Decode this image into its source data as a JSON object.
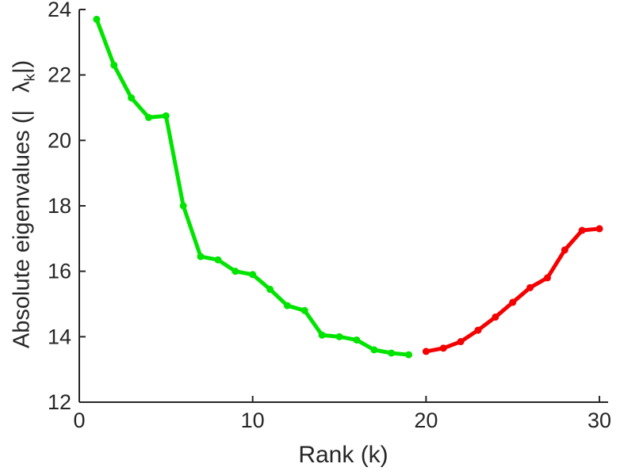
{
  "figure": {
    "background": "#ffffff",
    "axis_color": "#262626"
  },
  "axes": {
    "xlabel": "Rank (k)",
    "ylabel_prefix": "Absolute eigenvalues (|",
    "ylabel_lambda": "λ",
    "ylabel_sub": "k",
    "ylabel_suffix": "|)"
  },
  "chart_data": {
    "type": "line",
    "title": "",
    "xlabel": "Rank (k)",
    "ylabel": "Absolute eigenvalues (|λk|)",
    "xlim": [
      0,
      30.5
    ],
    "ylim": [
      12,
      24
    ],
    "x_ticks": [
      0,
      10,
      20,
      30
    ],
    "y_ticks": [
      12,
      14,
      16,
      18,
      20,
      22,
      24
    ],
    "grid": false,
    "legend": "none",
    "series": [
      {
        "name": "eigenvalues-descending-green",
        "color": "#00e400",
        "x": [
          1,
          2,
          3,
          4,
          5,
          6,
          7,
          8,
          9,
          10,
          11,
          12,
          13,
          14,
          15,
          16,
          17,
          18,
          19
        ],
        "y": [
          23.7,
          22.3,
          21.3,
          20.7,
          20.75,
          18.0,
          16.45,
          16.35,
          16.0,
          15.9,
          15.45,
          14.95,
          14.8,
          14.05,
          14.0,
          13.9,
          13.6,
          13.5,
          13.45
        ]
      },
      {
        "name": "eigenvalues-ascending-red",
        "color": "#f40000",
        "x": [
          20,
          21,
          22,
          23,
          24,
          25,
          26,
          27,
          28,
          29,
          30
        ],
        "y": [
          13.55,
          13.65,
          13.85,
          14.2,
          14.6,
          15.05,
          15.5,
          15.8,
          16.65,
          17.25,
          17.3
        ]
      }
    ]
  }
}
